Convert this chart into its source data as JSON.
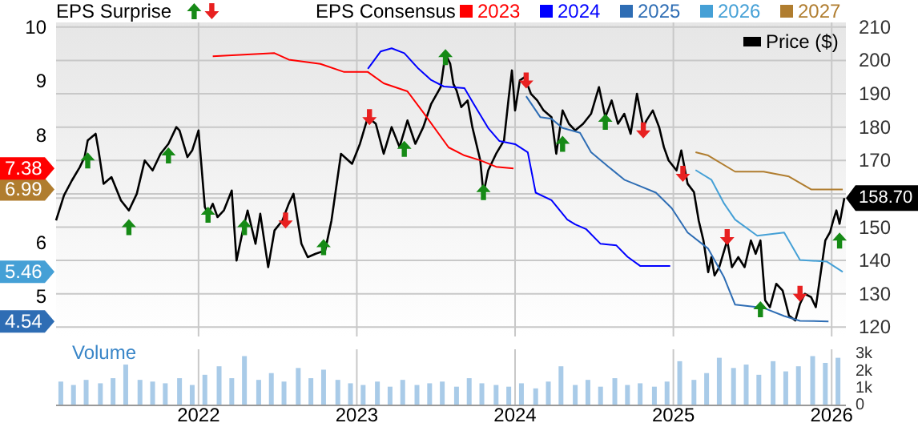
{
  "chart_data": [
    {
      "type": "line",
      "annotations": [
        "EPS Surprise"
      ],
      "legend_title": "EPS Consensus",
      "legend": "top",
      "grid": true,
      "tick_labels": "y",
      "xlim": [
        2021.1,
        2026.09
      ],
      "xticks": [
        2022,
        2023,
        2024,
        2025,
        2026
      ],
      "ylim": [
        4.26,
        10.09
      ],
      "yticks": [
        {
          "value": 4.54,
          "label": "4.54"
        },
        5,
        {
          "value": 5.46,
          "label": "5.46"
        },
        6,
        {
          "value": 6.99,
          "label": "6.99"
        },
        {
          "value": 7.38,
          "label": "7.38"
        },
        8,
        9,
        10
      ],
      "y2lim": [
        117.2,
        211.4
      ],
      "y2ticks": [
        120,
        130,
        140,
        150,
        {
          "value": 158.7,
          "label": "158.70"
        },
        {
          "value": 160,
          "label": null
        },
        170,
        180,
        190,
        200,
        210
      ],
      "series": [
        {
          "name": "Price ($)",
          "type": "line",
          "axis": "y2",
          "color": "#000000",
          "x": [
            2021.1,
            2021.15,
            2021.2,
            2021.25,
            2021.28,
            2021.3,
            2021.35,
            2021.37,
            2021.4,
            2021.45,
            2021.51,
            2021.56,
            2021.61,
            2021.66,
            2021.71,
            2021.76,
            2021.81,
            2021.86,
            2021.88,
            2021.93,
            2021.96,
            2022.0,
            2022.04,
            2022.06,
            2022.09,
            2022.12,
            2022.16,
            2022.21,
            2022.24,
            2022.28,
            2022.31,
            2022.36,
            2022.39,
            2022.44,
            2022.48,
            2022.53,
            2022.57,
            2022.6,
            2022.65,
            2022.69,
            2022.74,
            2022.8,
            2022.84,
            2022.9,
            2022.97,
            2023.02,
            2023.07,
            2023.12,
            2023.17,
            2023.22,
            2023.27,
            2023.32,
            2023.37,
            2023.42,
            2023.47,
            2023.53,
            2023.56,
            2023.59,
            2023.61,
            2023.63,
            2023.66,
            2023.7,
            2023.73,
            2023.78,
            2023.8,
            2023.83,
            2023.88,
            2023.93,
            2023.96,
            2023.98,
            2024.0,
            2024.03,
            2024.06,
            2024.1,
            2024.14,
            2024.18,
            2024.23,
            2024.26,
            2024.3,
            2024.34,
            2024.38,
            2024.43,
            2024.48,
            2024.53,
            2024.57,
            2024.61,
            2024.65,
            2024.69,
            2024.73,
            2024.77,
            2024.81,
            2024.83,
            2024.87,
            2024.91,
            2024.94,
            2024.97,
            2025.02,
            2025.05,
            2025.09,
            2025.13,
            2025.16,
            2025.19,
            2025.22,
            2025.24,
            2025.26,
            2025.29,
            2025.34,
            2025.37,
            2025.41,
            2025.45,
            2025.49,
            2025.52,
            2025.55,
            2025.58,
            2025.61,
            2025.65,
            2025.69,
            2025.73,
            2025.77,
            2025.8,
            2025.83,
            2025.87,
            2025.9,
            2025.93,
            2025.96,
            2025.99,
            2026.01,
            2026.03,
            2026.05,
            2026.08
          ],
          "values": [
            152,
            159.5,
            164,
            168,
            171,
            176,
            178,
            172.5,
            163,
            165,
            158,
            155,
            160,
            170,
            167,
            172,
            175,
            180,
            179,
            171,
            173,
            179,
            156,
            154,
            157,
            153,
            155,
            161,
            140,
            149,
            155,
            145,
            154,
            138,
            149,
            152,
            157,
            160,
            145,
            141,
            142,
            143,
            152,
            172,
            169,
            175,
            183,
            181,
            172,
            180,
            174,
            182,
            175,
            180,
            187,
            192,
            202,
            199,
            193,
            191,
            186,
            188,
            180,
            170,
            160,
            167,
            172,
            176,
            189,
            197,
            185,
            194,
            195,
            190,
            188,
            185,
            183,
            172,
            185,
            181,
            179,
            181,
            184,
            192,
            183,
            188,
            181,
            184,
            178,
            190,
            180,
            182,
            185,
            180,
            174,
            170,
            167,
            173,
            163,
            160.5,
            152,
            146,
            136.5,
            141,
            135.5,
            138,
            146,
            138,
            141,
            138,
            146,
            142,
            146,
            128,
            126,
            133,
            131,
            123.5,
            122,
            127,
            130,
            129,
            126,
            136,
            146,
            148.5,
            152,
            155,
            151,
            158.7
          ]
        },
        {
          "name": "2023",
          "type": "line",
          "axis": "y",
          "color": "#ff0000",
          "x": [
            2022.09,
            2022.48,
            2022.57,
            2022.77,
            2022.92,
            2023.07,
            2023.17,
            2023.32,
            2023.42,
            2023.58,
            2023.68,
            2023.78,
            2023.88,
            2023.99
          ],
          "values": [
            9.46,
            9.52,
            9.4,
            9.32,
            9.17,
            9.17,
            8.96,
            8.81,
            8.42,
            7.77,
            7.62,
            7.53,
            7.41,
            7.38
          ]
        },
        {
          "name": "2024",
          "type": "line",
          "axis": "y",
          "color": "#0000ff",
          "x": [
            2023.07,
            2023.15,
            2023.22,
            2023.3,
            2023.39,
            2023.47,
            2023.55,
            2023.68,
            2023.74,
            2023.83,
            2023.9,
            2024.0,
            2024.08,
            2024.13,
            2024.23,
            2024.33,
            2024.38,
            2024.45,
            2024.54,
            2024.64,
            2024.71,
            2024.79,
            2024.98
          ],
          "values": [
            9.23,
            9.55,
            9.61,
            9.52,
            9.23,
            9.02,
            8.9,
            8.87,
            8.57,
            8.13,
            7.89,
            7.83,
            7.68,
            6.93,
            6.79,
            6.43,
            6.34,
            6.25,
            5.98,
            5.95,
            5.74,
            5.57,
            5.57
          ]
        },
        {
          "name": "2025",
          "type": "line",
          "axis": "y",
          "color": "#2e6db4",
          "x": [
            2024.07,
            2024.16,
            2024.23,
            2024.3,
            2024.41,
            2024.48,
            2024.59,
            2024.69,
            2024.79,
            2024.89,
            2024.99,
            2025.09,
            2025.22,
            2025.32,
            2025.39,
            2025.57,
            2025.7,
            2025.8,
            2025.98
          ],
          "values": [
            8.72,
            8.33,
            8.3,
            8.13,
            8.04,
            7.68,
            7.41,
            7.17,
            7.05,
            6.93,
            6.64,
            6.19,
            5.89,
            5.36,
            4.85,
            4.79,
            4.64,
            4.55,
            4.54
          ]
        },
        {
          "name": "2026",
          "type": "line",
          "axis": "y",
          "color": "#45a0d6",
          "x": [
            2025.14,
            2025.24,
            2025.32,
            2025.39,
            2025.53,
            2025.7,
            2025.8,
            2025.97,
            2026.07
          ],
          "values": [
            7.35,
            7.17,
            6.73,
            6.43,
            6.13,
            6.19,
            5.68,
            5.65,
            5.46
          ]
        },
        {
          "name": "2027",
          "type": "line",
          "axis": "y",
          "color": "#b07d2f",
          "x": [
            2025.14,
            2025.22,
            2025.39,
            2025.57,
            2025.73,
            2025.87,
            2026.07
          ],
          "values": [
            7.68,
            7.62,
            7.32,
            7.32,
            7.23,
            6.99,
            6.99
          ]
        },
        {
          "type": "scatter",
          "axis": "y2",
          "marker": "triangle",
          "color": "#168a16",
          "x": [
            2021.3,
            2021.56,
            2021.81,
            2022.06,
            2022.29,
            2022.79,
            2023.3,
            2023.56,
            2023.8,
            2024.3,
            2024.57,
            2025.55,
            2026.05
          ],
          "values": [
            170,
            150,
            171.5,
            153.7,
            150,
            144,
            173.5,
            201,
            160.5,
            175,
            181.6,
            125.4,
            146
          ]
        },
        {
          "type": "scatter",
          "axis": "y2",
          "marker": "triangle",
          "color": "#e82020",
          "x": [
            2022.55,
            2023.08,
            2024.07,
            2024.81,
            2025.06,
            2025.34,
            2025.8
          ],
          "values": [
            152,
            183,
            194,
            179,
            166,
            147,
            130
          ]
        }
      ]
    },
    {
      "type": "bar",
      "title": "Volume",
      "grid": "x",
      "color": "#a9cbe8",
      "xlim": [
        2021.1,
        2026.09
      ],
      "xticks": [
        2022,
        2023,
        2024,
        2025,
        2026
      ],
      "ylim": [
        0,
        3.3
      ],
      "yticks": [
        0,
        {
          "value": 1,
          "label": "1k"
        },
        {
          "value": 2,
          "label": "2k"
        },
        {
          "value": 3,
          "label": "3k"
        }
      ],
      "x": [
        2021.13,
        2021.21,
        2021.29,
        2021.38,
        2021.46,
        2021.54,
        2021.63,
        2021.71,
        2021.79,
        2021.88,
        2021.96,
        2022.04,
        2022.13,
        2022.21,
        2022.29,
        2022.38,
        2022.46,
        2022.54,
        2022.63,
        2022.71,
        2022.79,
        2022.88,
        2022.96,
        2023.04,
        2023.13,
        2023.21,
        2023.29,
        2023.38,
        2023.46,
        2023.54,
        2023.63,
        2023.71,
        2023.79,
        2023.88,
        2023.96,
        2024.04,
        2024.13,
        2024.21,
        2024.29,
        2024.38,
        2024.46,
        2024.54,
        2024.63,
        2024.71,
        2024.79,
        2024.88,
        2024.96,
        2025.04,
        2025.13,
        2025.21,
        2025.29,
        2025.38,
        2025.46,
        2025.54,
        2025.63,
        2025.71,
        2025.79,
        2025.88,
        2025.96,
        2026.04
      ],
      "values": [
        1.4,
        1.2,
        1.5,
        1.3,
        1.6,
        2.4,
        1.5,
        1.4,
        1.3,
        1.6,
        1.2,
        1.8,
        2.3,
        1.6,
        2.9,
        1.5,
        1.9,
        1.4,
        2.2,
        1.6,
        2.1,
        1.5,
        1.3,
        1.2,
        1.4,
        1.1,
        1.5,
        1.2,
        1.3,
        1.4,
        1.1,
        1.6,
        1.3,
        1.2,
        1.1,
        1.3,
        1.0,
        1.4,
        2.3,
        1.2,
        1.5,
        1.1,
        1.6,
        1.2,
        1.3,
        1.1,
        1.4,
        2.6,
        1.5,
        1.9,
        2.8,
        2.2,
        2.4,
        1.8,
        2.6,
        2.0,
        2.3,
        2.9,
        2.5,
        2.8
      ]
    }
  ]
}
